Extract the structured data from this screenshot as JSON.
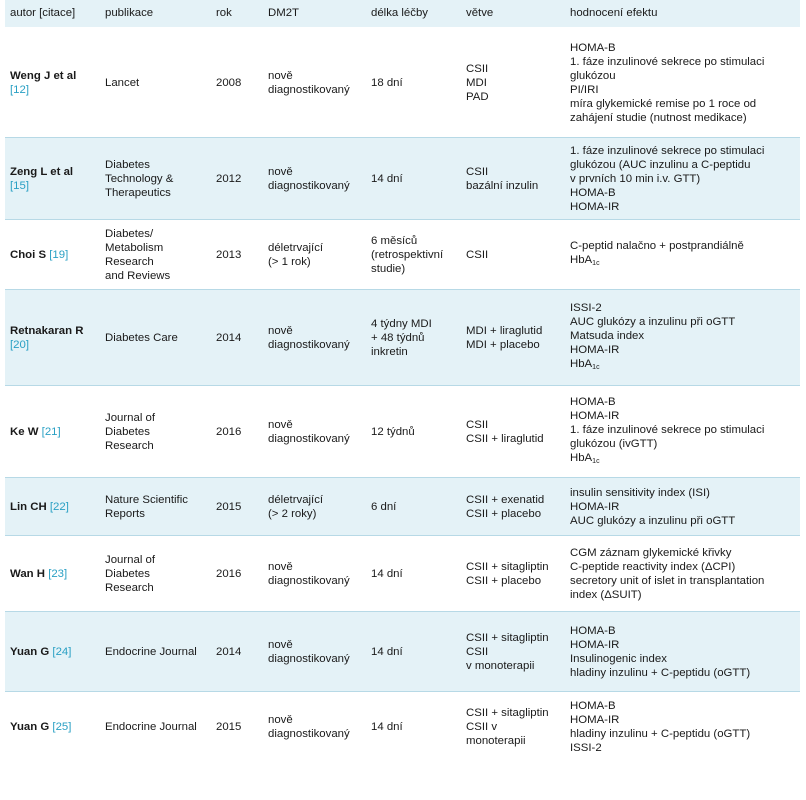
{
  "headers": [
    "autor [citace]",
    "publikace",
    "rok",
    "DM2T",
    "délka léčby",
    "větve",
    "hodnocení efektu"
  ],
  "rows": [
    {
      "author": "Weng J et al",
      "ref": "[12]",
      "publication": [
        "Lancet"
      ],
      "year": "2008",
      "dm2t": [
        "nově",
        "diagnostikovaný"
      ],
      "duration": [
        "18 dní"
      ],
      "branches": [
        "CSII",
        "MDI",
        "PAD"
      ],
      "effects": [
        {
          "text": "HOMA-B",
          "sub": ""
        },
        {
          "text": "1. fáze inzulinové sekrece po stimulaci",
          "sub": ""
        },
        {
          "text": "glukózou",
          "sub": ""
        },
        {
          "text": "PI/IRI",
          "sub": ""
        },
        {
          "text": "míra glykemické remise po 1 roce od",
          "sub": ""
        },
        {
          "text": "zahájení studie (nutnost medikace)",
          "sub": ""
        }
      ]
    },
    {
      "author": "Zeng L et al",
      "ref": "[15]",
      "publication": [
        "Diabetes",
        "Technology &",
        "Therapeutics"
      ],
      "year": "2012",
      "dm2t": [
        "nově",
        "diagnostikovaný"
      ],
      "duration": [
        "14 dní"
      ],
      "branches": [
        "CSII",
        "bazální inzulin"
      ],
      "effects": [
        {
          "text": "1. fáze inzulinové sekrece po stimulaci",
          "sub": ""
        },
        {
          "text": "glukózou (AUC inzulinu a C-peptidu",
          "sub": ""
        },
        {
          "text": "v prvních 10 min i.v. GTT)",
          "sub": ""
        },
        {
          "text": "HOMA-B",
          "sub": ""
        },
        {
          "text": "HOMA-IR",
          "sub": ""
        }
      ]
    },
    {
      "author": "Choi S",
      "ref": "[19]",
      "publication": [
        "Diabetes/",
        "Metabolism",
        "Research",
        "and Reviews"
      ],
      "year": "2013",
      "dm2t": [
        "déletrvající",
        "(> 1 rok)"
      ],
      "duration": [
        "6 měsíců",
        "(retrospektivní",
        "studie)"
      ],
      "branches": [
        "CSII"
      ],
      "effects": [
        {
          "text": "C-peptid nalačno + postprandiálně",
          "sub": ""
        },
        {
          "text": "HbA",
          "sub": "1c"
        }
      ]
    },
    {
      "author": "Retnakaran R",
      "ref": "[20]",
      "publication": [
        "Diabetes Care"
      ],
      "year": "2014",
      "dm2t": [
        "nově",
        "diagnostikovaný"
      ],
      "duration": [
        "4 týdny MDI",
        "+ 48 týdnů",
        "inkretin"
      ],
      "branches": [
        "MDI + liraglutid",
        "MDI + placebo"
      ],
      "effects": [
        {
          "text": "ISSI-2",
          "sub": ""
        },
        {
          "text": "AUC glukózy a inzulinu při oGTT",
          "sub": ""
        },
        {
          "text": "Matsuda index",
          "sub": ""
        },
        {
          "text": "HOMA-IR",
          "sub": ""
        },
        {
          "text": "HbA",
          "sub": "1c"
        }
      ]
    },
    {
      "author": "Ke W",
      "ref": "[21]",
      "publication": [
        "Journal of",
        "Diabetes",
        "Research"
      ],
      "year": "2016",
      "dm2t": [
        "nově",
        "diagnostikovaný"
      ],
      "duration": [
        "12 týdnů"
      ],
      "branches": [
        "CSII",
        "CSII + liraglutid"
      ],
      "effects": [
        {
          "text": "HOMA-B",
          "sub": ""
        },
        {
          "text": "HOMA-IR",
          "sub": ""
        },
        {
          "text": "1. fáze inzulinové sekrece po stimulaci",
          "sub": ""
        },
        {
          "text": "glukózou (ivGTT)",
          "sub": ""
        },
        {
          "text": "HbA",
          "sub": "1c"
        }
      ]
    },
    {
      "author": "Lin CH",
      "ref": "[22]",
      "publication": [
        "Nature Scientific",
        "Reports"
      ],
      "year": "2015",
      "dm2t": [
        "déletrvající",
        "(> 2 roky)"
      ],
      "duration": [
        "6 dní"
      ],
      "branches": [
        "CSII + exenatid",
        "CSII + placebo"
      ],
      "effects": [
        {
          "text": "insulin sensitivity index (ISI)",
          "sub": ""
        },
        {
          "text": "HOMA-IR",
          "sub": ""
        },
        {
          "text": "AUC glukózy a inzulinu při oGTT",
          "sub": ""
        }
      ]
    },
    {
      "author": "Wan H",
      "ref": "[23]",
      "publication": [
        "Journal of",
        "Diabetes",
        "Research"
      ],
      "year": "2016",
      "dm2t": [
        "nově",
        "diagnostikovaný"
      ],
      "duration": [
        "14 dní"
      ],
      "branches": [
        "CSII + sitagliptin",
        "CSII + placebo"
      ],
      "effects": [
        {
          "text": "CGM záznam glykemické křivky",
          "sub": ""
        },
        {
          "text": "C-peptide reactivity index (ΔCPI)",
          "sub": ""
        },
        {
          "text": "secretory unit of islet in transplantation",
          "sub": ""
        },
        {
          "text": "index (ΔSUIT)",
          "sub": ""
        }
      ]
    },
    {
      "author": "Yuan G",
      "ref": "[24]",
      "publication": [
        "Endocrine Journal"
      ],
      "year": "2014",
      "dm2t": [
        "nově",
        "diagnostikovaný"
      ],
      "duration": [
        "14 dní"
      ],
      "branches": [
        "CSII + sitagliptin",
        "CSII",
        "v monoterapii"
      ],
      "effects": [
        {
          "text": "HOMA-B",
          "sub": ""
        },
        {
          "text": "HOMA-IR",
          "sub": ""
        },
        {
          "text": "Insulinogenic index",
          "sub": ""
        },
        {
          "text": "hladiny inzulinu + C-peptidu (oGTT)",
          "sub": ""
        }
      ]
    },
    {
      "author": "Yuan G",
      "ref": "[25]",
      "publication": [
        "Endocrine Journal"
      ],
      "year": "2015",
      "dm2t": [
        "nově",
        "diagnostikovaný"
      ],
      "duration": [
        "14 dní"
      ],
      "branches": [
        "CSII + sitagliptin",
        "CSII v",
        "monoterapii"
      ],
      "effects": [
        {
          "text": "HOMA-B",
          "sub": ""
        },
        {
          "text": "HOMA-IR",
          "sub": ""
        },
        {
          "text": "hladiny inzulinu + C-peptidu (oGTT)",
          "sub": ""
        },
        {
          "text": "ISSI-2",
          "sub": ""
        }
      ]
    }
  ]
}
